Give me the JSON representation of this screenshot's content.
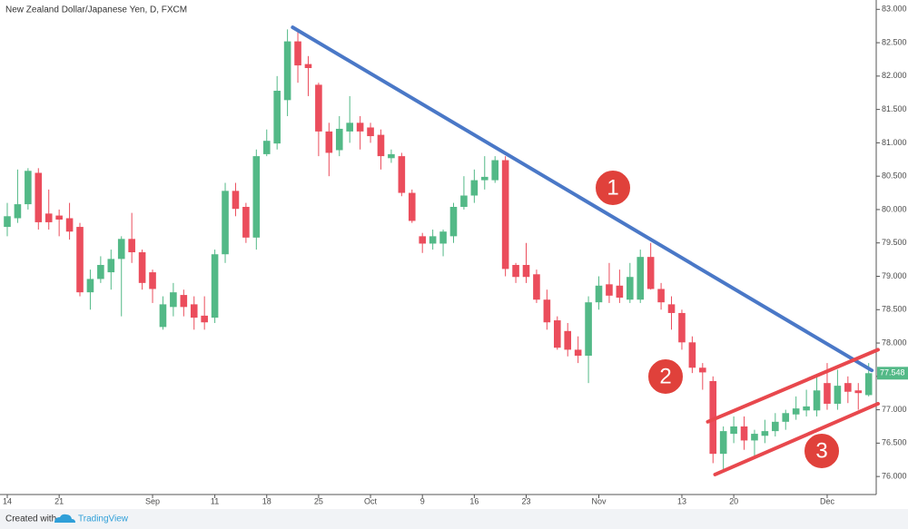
{
  "chart_data": {
    "type": "candlestick",
    "title": "New Zealand Dollar/Japanese Yen, D, FXCM",
    "categories": [
      "14",
      null,
      null,
      null,
      null,
      "21",
      null,
      null,
      null,
      null,
      null,
      null,
      null,
      null,
      "Sep",
      null,
      null,
      null,
      null,
      null,
      "11",
      null,
      null,
      null,
      null,
      "18",
      null,
      null,
      null,
      null,
      "25",
      null,
      null,
      null,
      null,
      "Oct",
      null,
      null,
      null,
      null,
      "9",
      null,
      null,
      null,
      null,
      "16",
      null,
      null,
      null,
      null,
      "23",
      null,
      null,
      null,
      null,
      null,
      null,
      "Nov",
      null,
      null,
      null,
      null,
      null,
      null,
      null,
      "13",
      null,
      null,
      null,
      null,
      "20",
      null,
      null,
      null,
      null,
      null,
      null,
      null,
      null,
      "Dec",
      null,
      null,
      null,
      null
    ],
    "open": [
      79.74,
      79.87,
      80.08,
      80.55,
      79.94,
      79.91,
      79.87,
      79.74,
      78.76,
      78.96,
      79.06,
      79.26,
      79.56,
      79.36,
      79.06,
      78.24,
      78.54,
      78.72,
      78.58,
      78.41,
      78.38,
      79.33,
      80.28,
      80.04,
      79.58,
      80.83,
      80.99,
      81.64,
      82.52,
      82.18,
      81.87,
      81.17,
      80.89,
      81.17,
      81.3,
      81.23,
      81.12,
      80.77,
      80.8,
      80.25,
      79.6,
      79.49,
      79.49,
      79.6,
      80.04,
      80.21,
      80.44,
      80.44,
      80.74,
      79.17,
      79.17,
      79.03,
      78.65,
      78.34,
      78.18,
      77.9,
      77.81,
      78.61,
      78.88,
      78.86,
      78.65,
      78.65,
      79.29,
      78.81,
      78.58,
      78.45,
      78.01,
      77.63,
      77.43,
      76.34,
      76.64,
      76.75,
      76.54,
      76.61,
      76.68,
      76.82,
      76.93,
      76.99,
      76.99,
      77.4,
      77.09,
      77.4,
      77.29,
      77.22
    ],
    "high": [
      80.1,
      80.6,
      80.62,
      80.62,
      80.3,
      80.0,
      80.1,
      79.8,
      79.1,
      79.3,
      79.4,
      79.6,
      79.95,
      79.4,
      79.1,
      78.7,
      78.9,
      78.8,
      78.7,
      78.7,
      79.4,
      80.4,
      80.4,
      80.1,
      80.9,
      81.2,
      82.0,
      82.7,
      82.7,
      82.3,
      81.9,
      81.3,
      81.4,
      81.7,
      81.4,
      81.3,
      81.2,
      80.9,
      80.85,
      80.3,
      79.65,
      79.7,
      79.7,
      80.1,
      80.5,
      80.6,
      80.8,
      80.8,
      80.8,
      79.2,
      79.5,
      79.1,
      78.8,
      78.4,
      78.3,
      78.1,
      78.7,
      79.0,
      79.2,
      79.1,
      79.2,
      79.4,
      79.5,
      78.9,
      78.7,
      78.5,
      78.1,
      77.7,
      77.5,
      76.75,
      76.9,
      76.9,
      76.7,
      76.85,
      76.95,
      77.0,
      77.2,
      77.3,
      77.5,
      77.7,
      77.6,
      77.5,
      77.4,
      77.7
    ],
    "low": [
      79.6,
      79.8,
      80.0,
      79.7,
      79.7,
      79.6,
      79.55,
      78.7,
      78.5,
      78.9,
      78.8,
      78.4,
      79.2,
      78.8,
      78.6,
      78.2,
      78.4,
      78.4,
      78.2,
      78.2,
      78.3,
      79.2,
      79.9,
      79.5,
      79.4,
      80.8,
      80.9,
      81.4,
      81.9,
      81.7,
      80.8,
      80.5,
      80.8,
      81.0,
      80.9,
      81.0,
      80.6,
      80.7,
      80.2,
      79.8,
      79.35,
      79.4,
      79.3,
      79.5,
      80.0,
      80.1,
      80.3,
      80.4,
      79.0,
      78.9,
      78.9,
      78.6,
      78.2,
      77.9,
      77.8,
      77.7,
      77.4,
      78.5,
      78.6,
      78.6,
      78.6,
      78.6,
      78.8,
      78.5,
      78.2,
      77.9,
      77.55,
      77.3,
      76.2,
      76.1,
      76.5,
      76.4,
      76.3,
      76.5,
      76.6,
      76.7,
      76.85,
      76.9,
      76.9,
      77.0,
      77.0,
      77.1,
      77.0,
      77.2
    ],
    "close": [
      79.9,
      80.08,
      80.58,
      79.81,
      79.81,
      79.85,
      79.67,
      78.76,
      78.96,
      79.17,
      79.26,
      79.56,
      79.36,
      78.9,
      78.81,
      78.58,
      78.76,
      78.54,
      78.38,
      78.31,
      79.33,
      80.28,
      80.01,
      79.58,
      80.8,
      81.03,
      81.78,
      82.52,
      82.16,
      82.12,
      81.17,
      80.85,
      81.21,
      81.3,
      81.17,
      81.1,
      80.8,
      80.83,
      80.25,
      79.83,
      79.49,
      79.6,
      79.67,
      80.04,
      80.21,
      80.44,
      80.49,
      80.74,
      79.11,
      78.99,
      78.99,
      78.65,
      78.31,
      77.93,
      77.9,
      77.81,
      78.61,
      78.86,
      78.71,
      78.68,
      78.99,
      79.29,
      78.81,
      78.61,
      78.45,
      78.01,
      77.63,
      77.56,
      76.34,
      76.68,
      76.75,
      76.54,
      76.64,
      76.68,
      76.82,
      76.95,
      77.02,
      77.05,
      77.29,
      77.09,
      77.36,
      77.27,
      77.25,
      77.548
    ],
    "last_price_label": "77.548",
    "up_color": "#53b987",
    "down_color": "#eb4d5c",
    "ylim": [
      75.73,
      83.14
    ],
    "yticks": [
      {
        "value": 76,
        "label": "76.000"
      },
      {
        "value": 76.5,
        "label": "76.500"
      },
      {
        "value": 77,
        "label": "77.000"
      },
      {
        "value": 77.5,
        "label": "77.500"
      },
      {
        "value": 78,
        "label": "78.000"
      },
      {
        "value": 78.5,
        "label": "78.500"
      },
      {
        "value": 79,
        "label": "79.000"
      },
      {
        "value": 79.5,
        "label": "79.500"
      },
      {
        "value": 80,
        "label": "80.000"
      },
      {
        "value": 80.5,
        "label": "80.500"
      },
      {
        "value": 81,
        "label": "81.000"
      },
      {
        "value": 81.5,
        "label": "81.500"
      },
      {
        "value": 82,
        "label": "82.000"
      },
      {
        "value": 82.5,
        "label": "82.500"
      },
      {
        "value": 83,
        "label": "83.000"
      }
    ],
    "grid": false,
    "trendlines": [
      {
        "color": "#4a78c7",
        "points": [
          [
            27.5,
            82.73
          ],
          [
            83.3,
            77.59
          ]
        ]
      },
      {
        "color": "#e8484d",
        "points": [
          [
            67.5,
            76.82
          ],
          [
            83.9,
            77.9
          ]
        ]
      },
      {
        "color": "#e8484d",
        "points": [
          [
            68.2,
            76.03
          ],
          [
            83.9,
            77.09
          ]
        ]
      }
    ],
    "annotations": [
      "1",
      "2",
      "3"
    ]
  },
  "footer": {
    "created": "Created with",
    "brand": "TradingView"
  }
}
